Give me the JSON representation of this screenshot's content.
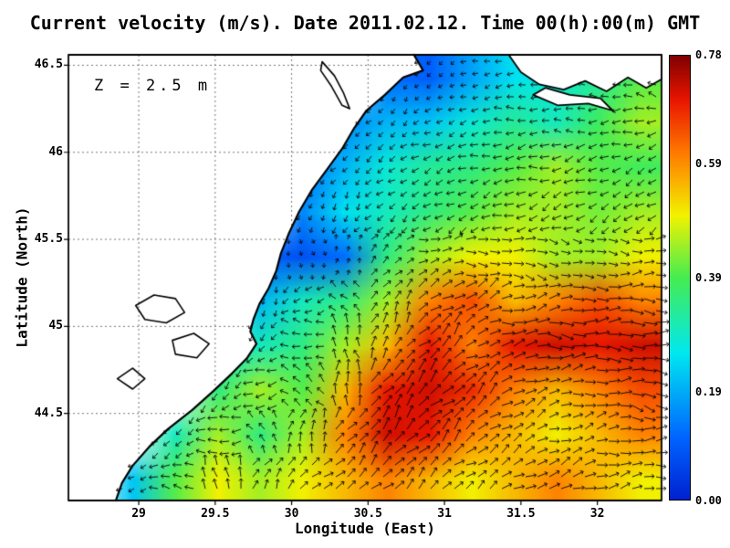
{
  "chart_data": {
    "type": "heatmap",
    "subtype": "ocean current speed field with quiver arrows over coastline map",
    "title": "Current velocity (m/s). Date 2011.02.12. Time 00(h):00(m) GMT",
    "xlabel": "Longitude (East)",
    "ylabel": "Latitude (North)",
    "annotation": "Z = 2.5 m",
    "xlim": [
      28.54,
      32.42
    ],
    "ylim": [
      44.0,
      46.56
    ],
    "xtick_values": [
      29,
      29.5,
      30,
      30.5,
      31,
      31.5,
      32
    ],
    "xtick_labels": [
      "29",
      "29.5",
      "30",
      "30.5",
      "31",
      "31.5",
      "32"
    ],
    "ytick_values": [
      44.5,
      45,
      45.5,
      46,
      46.5
    ],
    "ytick_labels": [
      "44.5",
      "45",
      "45.5",
      "46",
      "46.5"
    ],
    "grid_on": true,
    "legend": "colorbar right",
    "colorbar": {
      "min": 0,
      "max": 0.78,
      "tick_values": [
        0.78,
        0.59,
        0.39,
        0.19,
        0
      ],
      "tick_labels": [
        "0.78",
        "0.59",
        "0.39",
        "0.19",
        "0.00"
      ],
      "colormap": "jet",
      "stops": [
        {
          "t": 0.0,
          "c": "#0021d0"
        },
        {
          "t": 0.14,
          "c": "#0064ff"
        },
        {
          "t": 0.33,
          "c": "#00e8f0"
        },
        {
          "t": 0.5,
          "c": "#45ec50"
        },
        {
          "t": 0.64,
          "c": "#f2f200"
        },
        {
          "t": 0.78,
          "c": "#ff7a00"
        },
        {
          "t": 0.9,
          "c": "#e81500"
        },
        {
          "t": 1.0,
          "c": "#7f0000"
        }
      ]
    },
    "grid": {
      "lons": [
        28.68,
        28.96,
        29.24,
        29.53,
        29.81,
        30.09,
        30.37,
        30.65,
        30.94,
        31.22,
        31.5,
        31.78,
        32.06,
        32.34
      ],
      "lats": [
        46.44,
        46.18,
        45.93,
        45.67,
        45.41,
        45.15,
        44.9,
        44.64,
        44.38,
        44.12
      ],
      "speed": [
        [
          null,
          null,
          null,
          null,
          null,
          null,
          null,
          0.12,
          0.1,
          0.18,
          0.25,
          0.28,
          0.33,
          0.4
        ],
        [
          null,
          null,
          null,
          null,
          null,
          null,
          0.15,
          0.2,
          0.22,
          0.28,
          0.33,
          0.3,
          0.38,
          0.45
        ],
        [
          null,
          null,
          null,
          null,
          null,
          0.12,
          0.2,
          0.28,
          0.33,
          0.35,
          0.4,
          0.45,
          0.4,
          0.38
        ],
        [
          null,
          null,
          null,
          null,
          null,
          0.15,
          0.25,
          0.3,
          0.35,
          0.4,
          0.45,
          0.45,
          0.42,
          0.45
        ],
        [
          null,
          null,
          null,
          null,
          0.1,
          0.08,
          0.12,
          0.35,
          0.45,
          0.5,
          0.5,
          0.45,
          0.45,
          0.5
        ],
        [
          null,
          null,
          null,
          null,
          0.2,
          0.3,
          0.35,
          0.45,
          0.6,
          0.65,
          0.55,
          0.6,
          0.65,
          0.6
        ],
        [
          null,
          null,
          null,
          0.28,
          0.3,
          0.35,
          0.45,
          0.55,
          0.7,
          0.6,
          0.7,
          0.72,
          0.7,
          0.72
        ],
        [
          null,
          null,
          null,
          0.35,
          0.45,
          0.4,
          0.55,
          0.7,
          0.72,
          0.68,
          0.6,
          0.55,
          0.6,
          0.65
        ],
        [
          null,
          null,
          0.3,
          0.45,
          0.35,
          0.45,
          0.6,
          0.72,
          0.7,
          0.6,
          0.55,
          0.5,
          0.55,
          0.6
        ],
        [
          null,
          0.22,
          0.4,
          0.5,
          0.45,
          0.5,
          0.55,
          0.6,
          0.55,
          0.5,
          0.55,
          0.6,
          0.55,
          0.5
        ]
      ],
      "direction_deg": [
        [
          null,
          null,
          null,
          null,
          null,
          null,
          null,
          250,
          210,
          195,
          185,
          180,
          175,
          170
        ],
        [
          null,
          null,
          null,
          null,
          null,
          null,
          245,
          225,
          205,
          195,
          185,
          180,
          185,
          190
        ],
        [
          null,
          null,
          null,
          null,
          null,
          250,
          230,
          215,
          205,
          195,
          190,
          195,
          200,
          205
        ],
        [
          null,
          null,
          null,
          null,
          null,
          255,
          240,
          220,
          210,
          205,
          200,
          205,
          210,
          215
        ],
        [
          null,
          null,
          null,
          null,
          260,
          280,
          80,
          40,
          15,
          0,
          350,
          345,
          355,
          0
        ],
        [
          null,
          null,
          null,
          null,
          250,
          210,
          130,
          60,
          35,
          25,
          15,
          5,
          0,
          0
        ],
        [
          null,
          null,
          null,
          245,
          225,
          170,
          110,
          60,
          45,
          30,
          10,
          0,
          0,
          355
        ],
        [
          null,
          null,
          null,
          230,
          195,
          140,
          85,
          55,
          45,
          40,
          25,
          10,
          0,
          350
        ],
        [
          null,
          null,
          215,
          185,
          120,
          75,
          55,
          50,
          45,
          40,
          30,
          20,
          10,
          0
        ],
        [
          null,
          205,
          175,
          95,
          60,
          45,
          40,
          45,
          40,
          35,
          30,
          20,
          10,
          5
        ]
      ]
    },
    "coastline": [
      [
        30.8,
        46.56
      ],
      [
        30.86,
        46.47
      ],
      [
        30.73,
        46.43
      ],
      [
        30.61,
        46.33
      ],
      [
        30.49,
        46.24
      ],
      [
        30.41,
        46.14
      ],
      [
        30.33,
        46.02
      ],
      [
        30.23,
        45.9
      ],
      [
        30.13,
        45.78
      ],
      [
        30.05,
        45.66
      ],
      [
        29.98,
        45.53
      ],
      [
        29.93,
        45.42
      ],
      [
        29.9,
        45.32
      ],
      [
        29.85,
        45.22
      ],
      [
        29.79,
        45.13
      ],
      [
        29.75,
        45.04
      ],
      [
        29.73,
        44.97
      ],
      [
        29.77,
        44.9
      ],
      [
        29.71,
        44.82
      ],
      [
        29.61,
        44.73
      ],
      [
        29.49,
        44.63
      ],
      [
        29.35,
        44.52
      ],
      [
        29.19,
        44.41
      ],
      [
        29.07,
        44.31
      ],
      [
        28.96,
        44.2
      ],
      [
        28.89,
        44.1
      ],
      [
        28.85,
        44.0
      ]
    ],
    "land_shapes": [
      [
        [
          31.42,
          46.56
        ],
        [
          31.5,
          46.46
        ],
        [
          31.62,
          46.39
        ],
        [
          31.78,
          46.36
        ],
        [
          31.92,
          46.41
        ],
        [
          32.06,
          46.35
        ],
        [
          32.2,
          46.43
        ],
        [
          32.32,
          46.37
        ],
        [
          32.42,
          46.42
        ],
        [
          32.42,
          46.56
        ]
      ],
      [
        [
          31.58,
          46.33
        ],
        [
          31.74,
          46.27
        ],
        [
          31.94,
          46.28
        ],
        [
          32.1,
          46.24
        ],
        [
          32.02,
          46.31
        ],
        [
          31.82,
          46.33
        ],
        [
          31.66,
          46.37
        ]
      ]
    ],
    "lakes": [
      [
        [
          30.2,
          46.52
        ],
        [
          30.28,
          46.44
        ],
        [
          30.34,
          46.34
        ],
        [
          30.38,
          46.25
        ],
        [
          30.33,
          46.27
        ],
        [
          30.26,
          46.38
        ],
        [
          30.19,
          46.47
        ]
      ],
      [
        [
          28.98,
          45.12
        ],
        [
          29.1,
          45.18
        ],
        [
          29.24,
          45.16
        ],
        [
          29.3,
          45.08
        ],
        [
          29.18,
          45.02
        ],
        [
          29.04,
          45.04
        ]
      ],
      [
        [
          29.22,
          44.92
        ],
        [
          29.36,
          44.96
        ],
        [
          29.46,
          44.9
        ],
        [
          29.38,
          44.82
        ],
        [
          29.24,
          44.84
        ]
      ],
      [
        [
          28.86,
          44.7
        ],
        [
          28.96,
          44.76
        ],
        [
          29.04,
          44.7
        ],
        [
          28.96,
          44.64
        ]
      ]
    ]
  },
  "style": {
    "background": "#ffffff",
    "grid_color": "#777777",
    "coast_color": "#000000",
    "arrow_color": "#000000",
    "border_color": "#000000",
    "text_color": "#000000"
  }
}
